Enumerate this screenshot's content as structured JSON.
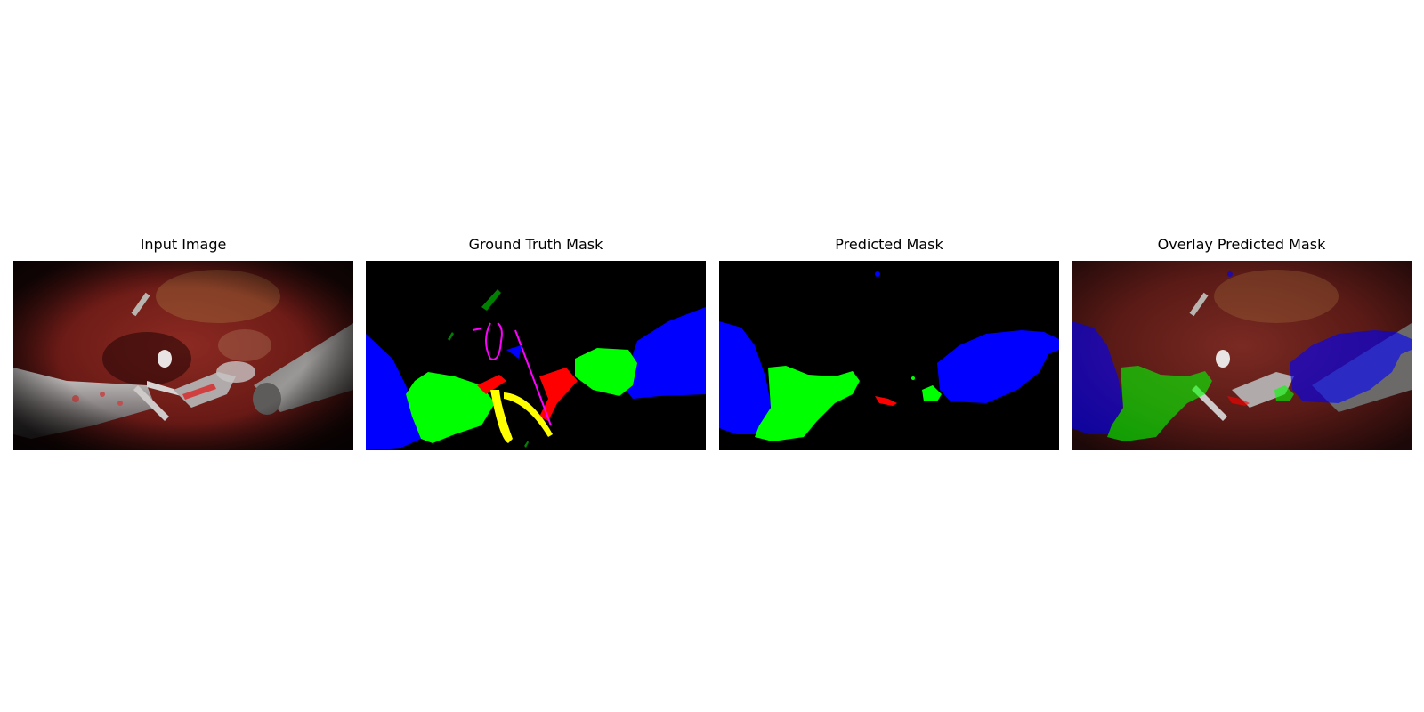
{
  "panels": [
    {
      "title": "Input Image"
    },
    {
      "title": "Ground Truth Mask"
    },
    {
      "title": "Predicted Mask"
    },
    {
      "title": "Overlay Predicted Mask"
    }
  ],
  "colors": {
    "background": "#ffffff",
    "mask_background": "#000000",
    "class_blue": "#0000ff",
    "class_green": "#00ff00",
    "class_red": "#ff0000",
    "class_yellow": "#ffff00",
    "class_magenta": "#ff00ff",
    "class_dark_green": "#008000"
  }
}
